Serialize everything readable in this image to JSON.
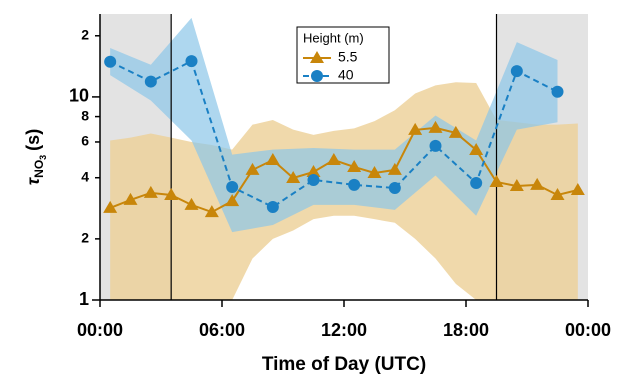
{
  "chart_data": {
    "type": "line",
    "x_label": "Time of Day (UTC)",
    "y_label": {
      "symbol": "τ",
      "sub": "NO",
      "subsub": "3",
      "unit": "(s)"
    },
    "legend_title": "Height (m)",
    "xlim": [
      0,
      24
    ],
    "xticks": [
      {
        "value": 0,
        "label": "00:00"
      },
      {
        "value": 6,
        "label": "06:00"
      },
      {
        "value": 12,
        "label": "12:00"
      },
      {
        "value": 18,
        "label": "18:00"
      },
      {
        "value": 24,
        "label": "00:00"
      }
    ],
    "ylim": [
      1,
      25.6
    ],
    "yticks": [
      1,
      2,
      4,
      6,
      8,
      10,
      {
        "value": 20,
        "label": "2"
      }
    ],
    "log_y": true,
    "shaded_regions": [
      [
        0,
        3.5
      ],
      [
        19.5,
        24
      ]
    ],
    "shade_color": "#e3e3e3",
    "series": [
      {
        "name": "5.5",
        "color": "#c8860a",
        "band_color": "#eccf96",
        "marker": "triangle",
        "dashed": false,
        "x": [
          0.5,
          1.5,
          2.5,
          3.5,
          4.5,
          5.5,
          6.5,
          7.5,
          8.5,
          9.5,
          10.5,
          11.5,
          12.5,
          13.5,
          14.5,
          15.5,
          16.5,
          17.5,
          18.5,
          19.5,
          20.5,
          21.5,
          22.5,
          23.5
        ],
        "values": [
          2.84,
          3.11,
          3.37,
          3.29,
          2.94,
          2.71,
          3.07,
          4.37,
          4.89,
          3.99,
          4.27,
          4.89,
          4.52,
          4.22,
          4.37,
          6.88,
          7.04,
          6.65,
          5.48,
          3.81,
          3.64,
          3.69,
          3.29,
          3.48
        ],
        "upper": [
          6.1,
          6.3,
          6.6,
          6.3,
          6.0,
          5.8,
          5.5,
          7.3,
          7.7,
          6.9,
          6.5,
          6.8,
          7.0,
          7.6,
          8.6,
          10.4,
          11.4,
          11.8,
          11.7,
          7.7,
          7.5,
          7.3,
          7.3,
          7.4
        ],
        "lower": [
          1,
          1,
          1,
          1,
          1,
          1,
          1,
          1.6,
          2.0,
          2.2,
          2.5,
          2.6,
          2.6,
          2.5,
          2.4,
          2.0,
          1.6,
          1.2,
          1,
          1,
          1,
          1,
          1,
          1
        ]
      },
      {
        "name": "40",
        "color": "#1a80c4",
        "band_color": "#8cc6e8",
        "marker": "circle",
        "dashed": true,
        "x": [
          0.5,
          2.5,
          4.5,
          6.5,
          8.5,
          10.5,
          12.5,
          14.5,
          16.5,
          18.5,
          20.5,
          22.5
        ],
        "values": [
          14.9,
          11.9,
          15.0,
          3.6,
          2.87,
          3.9,
          3.69,
          3.56,
          5.74,
          3.77,
          13.4,
          10.6
        ],
        "upper": [
          17.4,
          14.4,
          24.5,
          5.2,
          5.5,
          5.6,
          5.5,
          5.5,
          8.1,
          6.1,
          18.6,
          15.2
        ],
        "lower": [
          12.8,
          9.6,
          6.1,
          2.16,
          2.34,
          2.94,
          2.94,
          2.78,
          4.1,
          2.6,
          6.9,
          7.5
        ]
      }
    ]
  }
}
